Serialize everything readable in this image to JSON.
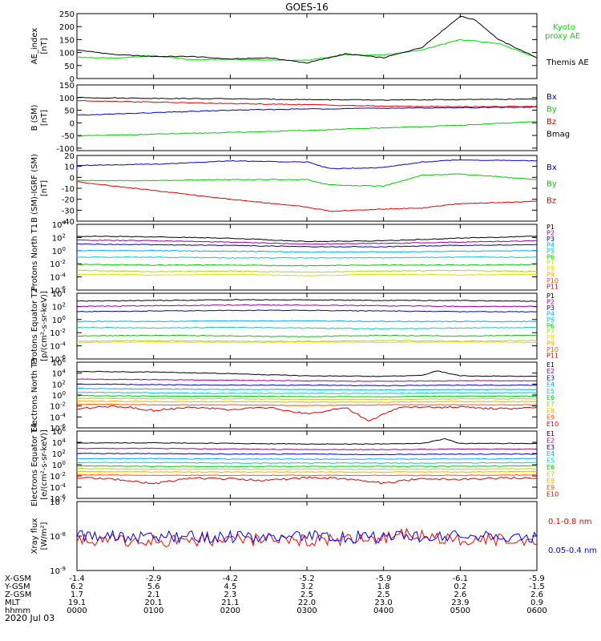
{
  "title": "GOES-16",
  "date_label": "2020 Jul 03",
  "ephemeris_labels": [
    "X-GSM",
    "Y-GSM",
    "Z-GSM",
    "MLT",
    "hhmm"
  ],
  "ephemeris": [
    [
      "-1.4",
      "6.2",
      "1.7",
      "19.1",
      "0000"
    ],
    [
      "-2.9",
      "5.6",
      "2.1",
      "20.1",
      "0100"
    ],
    [
      "-4.2",
      "4.5",
      "2.3",
      "21.1",
      "0200"
    ],
    [
      "-5.2",
      "3.2",
      "2.5",
      "22.0",
      "0300"
    ],
    [
      "-5.9",
      "1.8",
      "2.5",
      "23.0",
      "0400"
    ],
    [
      "-6.1",
      "0.2",
      "2.6",
      "23.9",
      "0500"
    ],
    [
      "-5.9",
      "-1.5",
      "2.6",
      "0.9",
      "0600"
    ]
  ],
  "chart_data": [
    {
      "type": "line",
      "ylabel": "AE_index [nT]",
      "ylim": [
        0,
        250
      ],
      "ytick_step": 50,
      "yticks": [
        "0",
        "50",
        "100",
        "150",
        "200",
        "250"
      ],
      "series": [
        {
          "name": "Kyoto proxy AE",
          "color": "#00dd00",
          "x": [
            0,
            0.5,
            1,
            1.5,
            2,
            2.5,
            3,
            3.5,
            4,
            4.5,
            5,
            5.5,
            6
          ],
          "values": [
            82,
            78,
            88,
            72,
            75,
            72,
            70,
            92,
            90,
            110,
            150,
            135,
            80
          ]
        },
        {
          "name": "Themis AE",
          "color": "#000000",
          "x": [
            0,
            0.5,
            1,
            1.5,
            2,
            2.5,
            3,
            3.5,
            4,
            4.5,
            5,
            5.2,
            5.5,
            6
          ],
          "values": [
            110,
            92,
            85,
            85,
            75,
            80,
            60,
            95,
            80,
            120,
            240,
            225,
            150,
            80
          ]
        }
      ]
    },
    {
      "type": "line",
      "ylabel": "B (SM) [nT]",
      "ylim": [
        -110,
        150
      ],
      "ytick_step": 50,
      "yticks": [
        "-100",
        "-50",
        "0",
        "50",
        "100",
        "150"
      ],
      "series": [
        {
          "name": "Bx",
          "color": "#0000cc",
          "x": [
            0,
            1,
            2,
            3,
            4,
            5,
            6
          ],
          "values": [
            30,
            40,
            50,
            55,
            58,
            60,
            62
          ]
        },
        {
          "name": "By",
          "color": "#00cc00",
          "x": [
            0,
            1,
            2,
            3,
            4,
            5,
            6
          ],
          "values": [
            -52,
            -45,
            -38,
            -30,
            -20,
            -10,
            5
          ]
        },
        {
          "name": "Bz",
          "color": "#dd0000",
          "x": [
            0,
            1,
            2,
            3,
            4,
            5,
            6
          ],
          "values": [
            88,
            82,
            76,
            72,
            66,
            64,
            65
          ]
        },
        {
          "name": "Bmag",
          "color": "#000000",
          "x": [
            0,
            1,
            2,
            3,
            4,
            5,
            6
          ],
          "values": [
            100,
            97,
            95,
            92,
            90,
            92,
            94
          ]
        }
      ]
    },
    {
      "type": "line",
      "ylabel": "B (SM)-IGRF (SM) [nT]",
      "ylim": [
        -40,
        20
      ],
      "ytick_step": 10,
      "yticks": [
        "-40",
        "-30",
        "-20",
        "-10",
        "0",
        "10",
        "20"
      ],
      "series": [
        {
          "name": "Bx",
          "color": "#0000cc",
          "x": [
            0,
            1,
            2,
            3,
            3.3,
            4,
            4.5,
            5,
            6
          ],
          "values": [
            11,
            12,
            15,
            14,
            8,
            9,
            14,
            16,
            15
          ]
        },
        {
          "name": "By",
          "color": "#00cc00",
          "x": [
            0,
            1,
            2,
            3,
            3.3,
            4,
            4.5,
            5,
            6
          ],
          "values": [
            -3,
            -3,
            -2,
            -2,
            -7,
            -8,
            2,
            3,
            -2
          ]
        },
        {
          "name": "Bz",
          "color": "#dd0000",
          "x": [
            0,
            1,
            2,
            3,
            3.3,
            4,
            4.5,
            5,
            6
          ],
          "values": [
            -4,
            -12,
            -20,
            -27,
            -31,
            -29,
            -28,
            -24,
            -22
          ]
        }
      ]
    },
    {
      "type": "line",
      "ylabel": "Protons North T1",
      "log": true,
      "ylim": [
        -6,
        4
      ],
      "yticks": [
        "10^-6",
        "10^-4",
        "10^-2",
        "10^0",
        "10^2",
        "10^4"
      ],
      "series": [
        {
          "name": "P1",
          "color": "#000000",
          "values": [
            2.2,
            2.1,
            1.9,
            1.4,
            1.5,
            1.9,
            2.2
          ]
        },
        {
          "name": "P2",
          "color": "#990099",
          "values": [
            1.6,
            1.5,
            1.3,
            1.0,
            1.1,
            1.3,
            1.5
          ]
        },
        {
          "name": "P3",
          "color": "#0000cc",
          "values": [
            1.0,
            0.9,
            0.8,
            0.6,
            0.6,
            0.8,
            0.9
          ]
        },
        {
          "name": "P4",
          "color": "#00aaff",
          "values": [
            0.0,
            0.0,
            -0.1,
            -0.2,
            -0.2,
            -0.1,
            0.0
          ]
        },
        {
          "name": "P5",
          "color": "#00cccc",
          "values": [
            -1.0,
            -1.0,
            -1.1,
            -1.1,
            -1.1,
            -1.0,
            -1.0
          ]
        },
        {
          "name": "P6",
          "color": "#00cc00",
          "values": [
            -2.1,
            -2.2,
            -2.2,
            -2.3,
            -2.2,
            -2.2,
            -2.1
          ]
        },
        {
          "name": "P7",
          "color": "#aadd00",
          "values": [
            -3.0,
            -3.2,
            -3.1,
            -3.3,
            -3.1,
            -3.0,
            -3.2
          ]
        },
        {
          "name": "P8",
          "color": "#dddd00",
          "values": [
            -3.6,
            -3.7,
            -3.6,
            -3.8,
            -3.6,
            -3.7,
            -3.6
          ]
        },
        {
          "name": "P9",
          "color": "#ffaa00",
          "values": []
        },
        {
          "name": "P10",
          "color": "#ff5500",
          "values": []
        },
        {
          "name": "P11",
          "color": "#dd0000",
          "values": []
        }
      ]
    },
    {
      "type": "line",
      "ylabel": "Protons Equator T2 [p/(cm²-s-sr-keV)]",
      "log": true,
      "ylim": [
        -6,
        4
      ],
      "yticks": [
        "10^-6",
        "10^-4",
        "10^-2",
        "10^0",
        "10^2",
        "10^4"
      ],
      "series": [
        {
          "name": "P1",
          "color": "#000000",
          "values": [
            2.8,
            2.9,
            3.0,
            3.0,
            2.9,
            2.9,
            2.8
          ]
        },
        {
          "name": "P2",
          "color": "#990099",
          "values": [
            2.0,
            2.1,
            2.2,
            2.2,
            2.1,
            2.0,
            2.0
          ]
        },
        {
          "name": "P3",
          "color": "#0000cc",
          "values": [
            1.2,
            1.3,
            1.4,
            1.4,
            1.3,
            1.2,
            1.2
          ]
        },
        {
          "name": "P4",
          "color": "#00aaff",
          "values": [
            -0.3,
            -0.3,
            -0.2,
            -0.2,
            -0.3,
            -0.3,
            -0.3
          ]
        },
        {
          "name": "P5",
          "color": "#00cccc",
          "values": [
            -1.2,
            -1.3,
            -1.2,
            -1.3,
            -1.4,
            -1.3,
            -1.2
          ]
        },
        {
          "name": "P6",
          "color": "#00cc00",
          "values": [
            -2.5,
            -2.4,
            -2.5,
            -2.6,
            -2.4,
            -2.5,
            -2.4
          ]
        },
        {
          "name": "P7",
          "color": "#aadd00",
          "values": [
            -3.3,
            -3.2,
            -3.3,
            -3.3,
            -3.2,
            -3.3,
            -3.2
          ]
        },
        {
          "name": "P8",
          "color": "#dddd00",
          "values": [
            -3.5,
            -3.4,
            -3.5,
            -3.4,
            -3.5,
            -3.4,
            -3.5
          ]
        },
        {
          "name": "P9",
          "color": "#ffaa00",
          "values": []
        },
        {
          "name": "P10",
          "color": "#ff5500",
          "values": []
        },
        {
          "name": "P11",
          "color": "#dd0000",
          "values": []
        }
      ]
    },
    {
      "type": "line",
      "ylabel": "Electrons North T3",
      "log": true,
      "ylim": [
        -6,
        6
      ],
      "yticks": [
        "10^-6",
        "10^-4",
        "10^-2",
        "10^0",
        "10^2",
        "10^4",
        "10^6"
      ],
      "series": [
        {
          "name": "E1",
          "color": "#000000",
          "x": [
            0,
            1,
            2,
            3,
            4,
            4.5,
            4.7,
            5,
            6
          ],
          "values": [
            4.3,
            4.2,
            3.9,
            3.5,
            3.4,
            3.6,
            4.4,
            3.5,
            3.4
          ]
        },
        {
          "name": "E2",
          "color": "#990099",
          "values": [
            2.9,
            2.8,
            2.7,
            2.6,
            2.5,
            2.6,
            2.6
          ]
        },
        {
          "name": "E3",
          "color": "#0000cc",
          "values": [
            2.0,
            1.9,
            1.8,
            1.8,
            1.7,
            1.8,
            1.8
          ]
        },
        {
          "name": "E4",
          "color": "#00aaff",
          "values": [
            1.2,
            1.1,
            1.0,
            1.0,
            0.9,
            1.0,
            1.0
          ]
        },
        {
          "name": "E5",
          "color": "#00cccc",
          "values": [
            0.5,
            0.4,
            0.3,
            0.3,
            0.3,
            0.4,
            0.4
          ]
        },
        {
          "name": "E6",
          "color": "#00cc00",
          "values": [
            -0.1,
            -0.2,
            -0.2,
            -0.3,
            -0.3,
            -0.2,
            -0.2
          ]
        },
        {
          "name": "E7",
          "color": "#aadd00",
          "values": [
            -0.6,
            -0.7,
            -0.7,
            -0.8,
            -0.8,
            -0.7,
            -0.7
          ]
        },
        {
          "name": "E8",
          "color": "#ffaa00",
          "values": [
            -1.1,
            -1.2,
            -1.2,
            -1.3,
            -1.3,
            -1.2,
            -1.2
          ]
        },
        {
          "name": "E9",
          "color": "#ff5500",
          "values": [
            -1.7,
            -1.8,
            -1.8,
            -1.9,
            -1.8,
            -1.8,
            -1.8
          ]
        },
        {
          "name": "E10",
          "color": "#dd0000",
          "x": [
            0,
            0.5,
            1,
            1.5,
            2,
            2.5,
            3,
            3.5,
            3.8,
            4.2,
            5,
            5.5,
            6
          ],
          "values": [
            -2.5,
            -2.0,
            -2.8,
            -2.2,
            -2.7,
            -2.3,
            -3.5,
            -2.2,
            -4.8,
            -2.3,
            -2.2,
            -2.5,
            -2.3
          ]
        }
      ]
    },
    {
      "type": "line",
      "ylabel": "Electrons Equator T4 [e/(cm²-s-sr-keV)]",
      "log": true,
      "ylim": [
        -6,
        6
      ],
      "yticks": [
        "10^-6",
        "10^-4",
        "10^-2",
        "10^0",
        "10^2",
        "10^4",
        "10^6"
      ],
      "series": [
        {
          "name": "E1",
          "color": "#000000",
          "x": [
            0,
            1,
            2,
            3,
            4,
            4.5,
            4.8,
            5,
            6
          ],
          "values": [
            3.9,
            3.9,
            3.8,
            3.7,
            3.7,
            3.8,
            4.6,
            3.8,
            3.8
          ]
        },
        {
          "name": "E2",
          "color": "#990099",
          "values": [
            2.9,
            2.9,
            2.8,
            2.7,
            2.7,
            2.8,
            2.8
          ]
        },
        {
          "name": "E3",
          "color": "#0000cc",
          "values": [
            2.0,
            2.0,
            1.9,
            1.9,
            1.8,
            1.9,
            1.9
          ]
        },
        {
          "name": "E4",
          "color": "#00aaff",
          "values": [
            1.1,
            1.1,
            1.0,
            1.0,
            1.0,
            1.0,
            1.1
          ]
        },
        {
          "name": "E5",
          "color": "#00cccc",
          "values": [
            0.4,
            0.4,
            0.3,
            0.3,
            0.3,
            0.3,
            0.4
          ]
        },
        {
          "name": "E6",
          "color": "#00cc00",
          "values": [
            -0.2,
            -0.3,
            -0.3,
            -0.3,
            -0.3,
            -0.3,
            -0.2
          ]
        },
        {
          "name": "E7",
          "color": "#aadd00",
          "values": [
            -0.7,
            -0.8,
            -0.8,
            -0.8,
            -0.8,
            -0.8,
            -0.7
          ]
        },
        {
          "name": "E8",
          "color": "#ffaa00",
          "values": [
            -1.2,
            -1.3,
            -1.3,
            -1.3,
            -1.3,
            -1.3,
            -1.2
          ]
        },
        {
          "name": "E9",
          "color": "#ff5500",
          "values": [
            -1.8,
            -1.9,
            -1.9,
            -1.9,
            -1.9,
            -1.9,
            -1.8
          ]
        },
        {
          "name": "E10",
          "color": "#dd0000",
          "x": [
            0,
            0.5,
            1,
            1.5,
            2,
            2.5,
            3,
            3.5,
            4,
            4.5,
            5,
            5.5,
            6
          ],
          "values": [
            -2.3,
            -2.6,
            -3.4,
            -2.4,
            -2.5,
            -2.8,
            -2.3,
            -2.5,
            -3.3,
            -2.4,
            -2.6,
            -2.4,
            -2.3
          ]
        }
      ]
    },
    {
      "type": "line",
      "ylabel": "Xray flux [W/m²]",
      "log": true,
      "ylim": [
        -9,
        -7
      ],
      "yticks": [
        "10^-9",
        "10^-8",
        "10^-7"
      ],
      "series": [
        {
          "name": "0.1-0.8 nm",
          "color": "#ff0000",
          "x": [
            0,
            1,
            2,
            3,
            4,
            4.3,
            4.6,
            5,
            6
          ],
          "values": [
            -8.1,
            -8.15,
            -8.1,
            -8.12,
            -8.1,
            -7.92,
            -8.05,
            -8.12,
            -8.1
          ]
        },
        {
          "name": "0.05-0.4 nm",
          "color": "#0000ff",
          "x": [
            0,
            1,
            2,
            3,
            4,
            5,
            6
          ],
          "values": [
            -8.02,
            -8.03,
            -8.02,
            -8.02,
            -8.03,
            -8.02,
            -8.02
          ]
        }
      ]
    }
  ]
}
